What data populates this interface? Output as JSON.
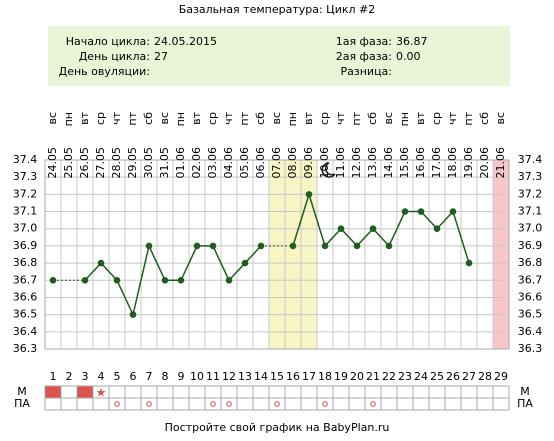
{
  "chart_data": {
    "type": "line",
    "title": "Базальная температура: Цикл #2",
    "categories": [
      "1",
      "2",
      "3",
      "4",
      "5",
      "6",
      "7",
      "8",
      "9",
      "10",
      "11",
      "12",
      "13",
      "14",
      "15",
      "16",
      "17",
      "18",
      "19",
      "20",
      "21",
      "22",
      "23",
      "24",
      "25",
      "26",
      "27",
      "28",
      "29"
    ],
    "weekdays": [
      "вс",
      "пн",
      "вт",
      "ср",
      "чт",
      "пт",
      "сб",
      "вс",
      "пн",
      "вт",
      "ср",
      "чт",
      "пт",
      "сб",
      "вс",
      "пн",
      "вт",
      "ср",
      "чт",
      "пт",
      "сб",
      "вс",
      "пн",
      "вт",
      "ср",
      "чт",
      "пт",
      "сб",
      "вс"
    ],
    "dates": [
      "24.05",
      "25.05",
      "26.05",
      "27.05",
      "28.05",
      "29.05",
      "30.05",
      "31.05",
      "01.06",
      "02.06",
      "03.06",
      "04.06",
      "05.06",
      "06.06",
      "07.06",
      "08.06",
      "09.06",
      "10.06",
      "11.06",
      "12.06",
      "13.06",
      "14.06",
      "15.06",
      "16.06",
      "17.06",
      "18.06",
      "19.06",
      "20.06",
      "21.06"
    ],
    "series": [
      {
        "name": "Температура",
        "color": "#1d5e1d",
        "values": [
          36.7,
          null,
          36.7,
          36.8,
          36.7,
          36.5,
          36.9,
          36.7,
          36.7,
          36.9,
          36.9,
          36.7,
          36.8,
          36.9,
          null,
          36.9,
          37.2,
          36.9,
          37.0,
          36.9,
          37.0,
          36.9,
          37.1,
          37.1,
          37.0,
          37.1,
          36.8,
          null,
          null
        ]
      }
    ],
    "ylim": [
      36.3,
      37.4
    ],
    "yticks": [
      36.3,
      36.4,
      36.5,
      36.6,
      36.7,
      36.8,
      36.9,
      {
        "value": 37,
        "label": "37.0"
      },
      37.1,
      37.2,
      37.3,
      37.4
    ],
    "grid": true,
    "highlights": [
      {
        "from": 15,
        "to": 17,
        "color": "#f7f5c4"
      },
      {
        "from": 29,
        "to": 29,
        "color": "#f7c6c6"
      }
    ],
    "rows": [
      {
        "label": "М",
        "cells": [
          "fill",
          null,
          "fill",
          "star",
          null,
          null,
          null,
          null,
          null,
          null,
          null,
          null,
          null,
          null,
          null,
          null,
          null,
          null,
          null,
          null,
          null,
          null,
          null,
          null,
          null,
          null,
          null,
          null,
          null
        ]
      },
      {
        "label": "ПА",
        "cells": [
          null,
          null,
          null,
          null,
          "circle",
          null,
          "circle",
          null,
          null,
          null,
          "circle",
          "circle",
          null,
          null,
          "circle",
          null,
          null,
          "circle",
          null,
          null,
          "circle",
          null,
          null,
          null,
          null,
          null,
          null,
          null,
          null
        ]
      }
    ]
  },
  "info": {
    "left": [
      {
        "label": "Начало цикла:",
        "value": "24.05.2015"
      },
      {
        "label": "День цикла:",
        "value": "27"
      },
      {
        "label": "День овуляции:"
      }
    ],
    "right": [
      {
        "label": "1ая фаза:",
        "value": "36.87"
      },
      {
        "label": "2ая фаза:",
        "value": "0.00"
      },
      {
        "label": "Разница:"
      }
    ]
  },
  "footer": "Постройте свой график на BabyPlan.ru"
}
